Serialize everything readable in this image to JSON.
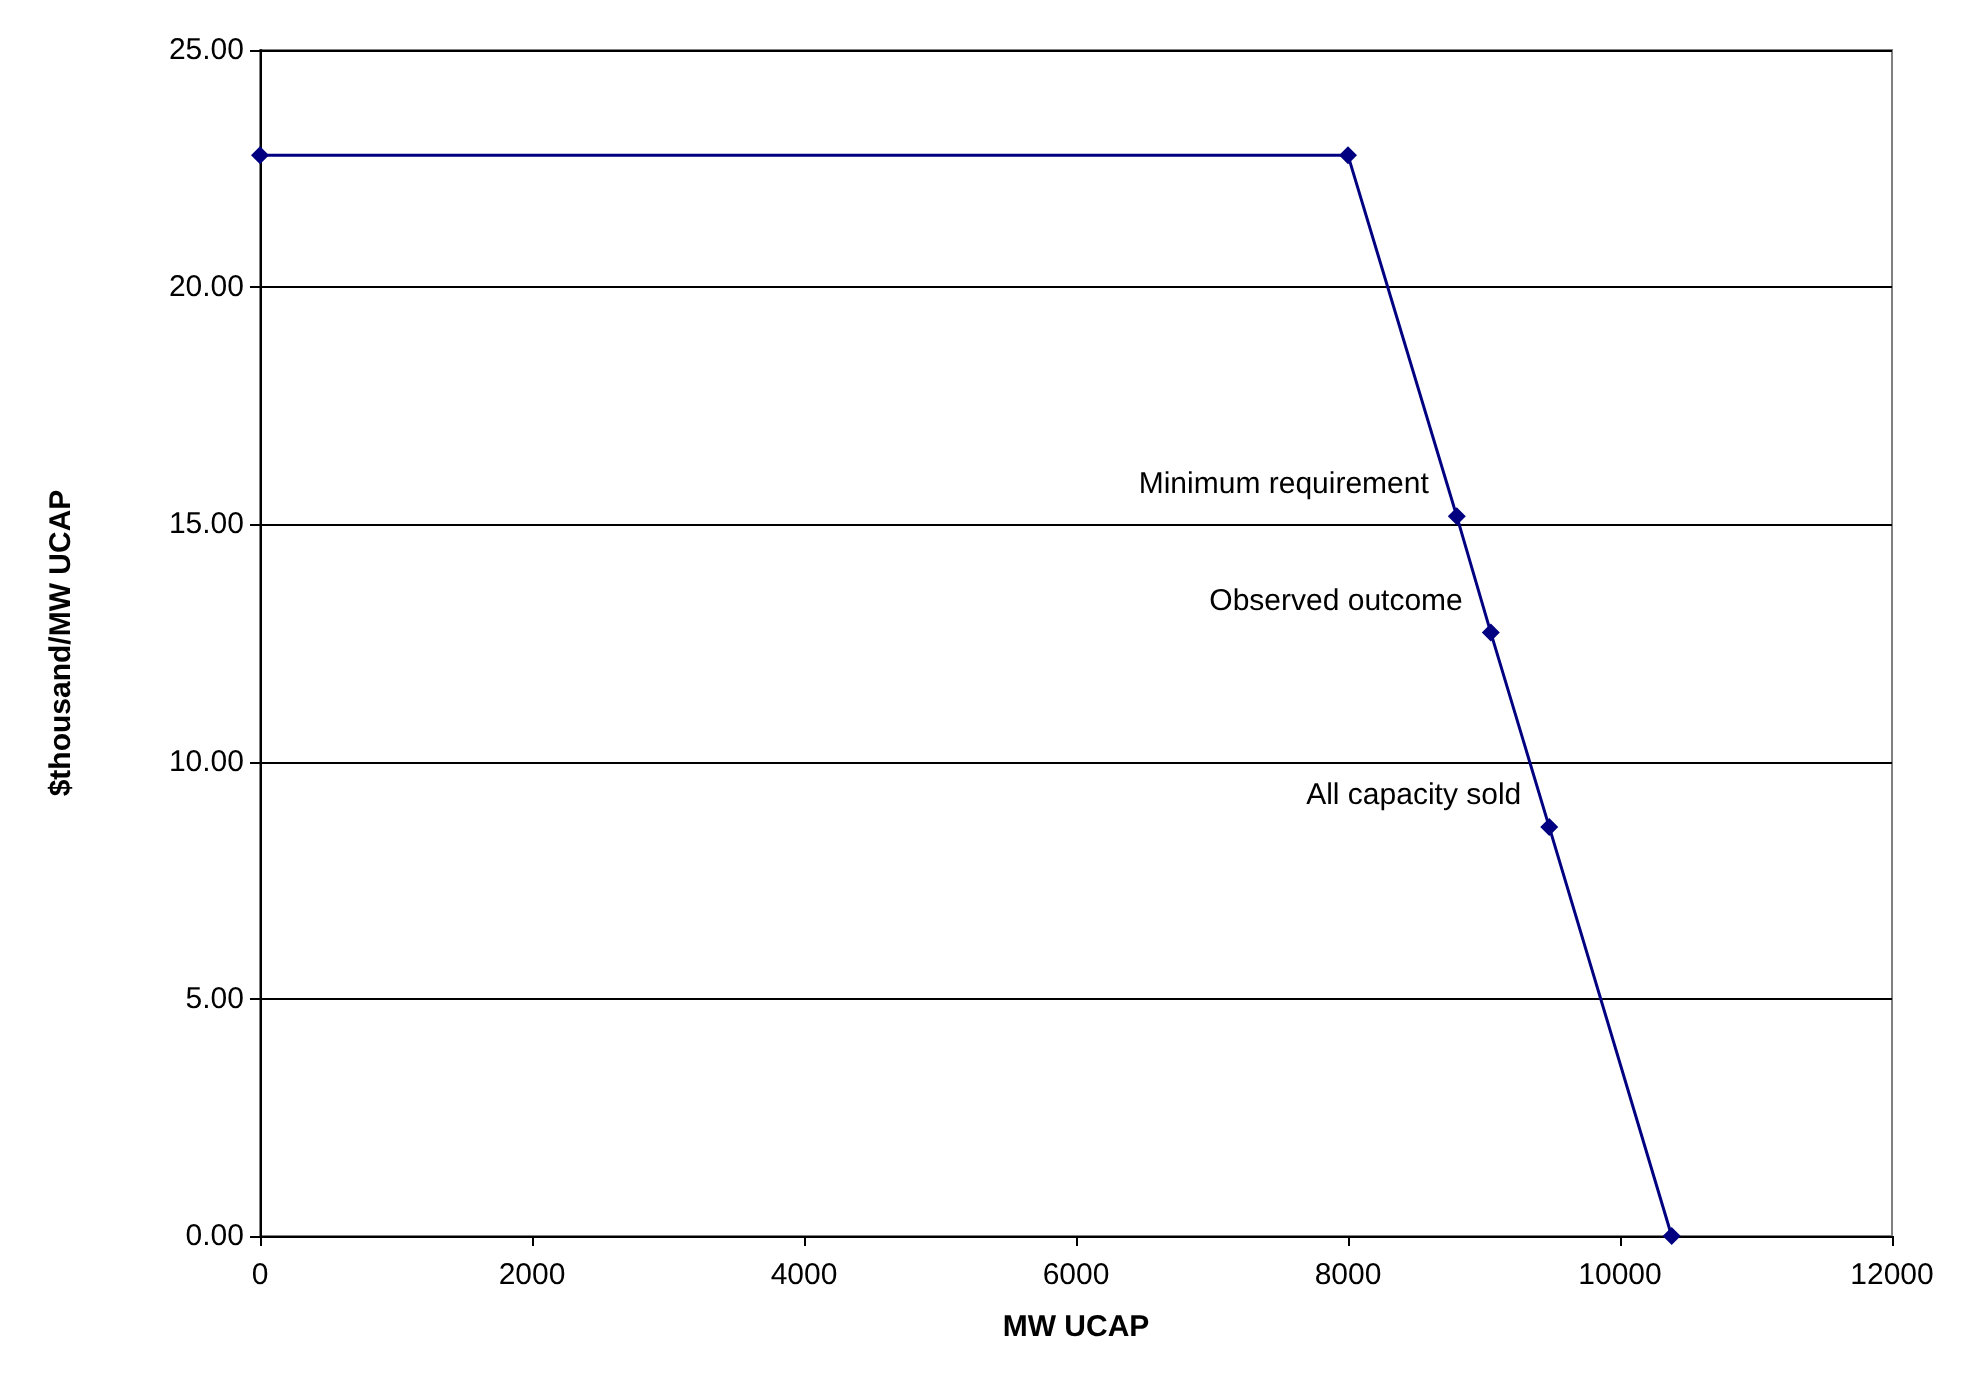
{
  "chart_data": {
    "type": "line",
    "xlabel": "MW UCAP",
    "ylabel": "$thousand/MW UCAP",
    "x": [
      0,
      8000,
      8800,
      9050,
      9480,
      10380
    ],
    "series": [
      {
        "color": "#000080",
        "values": [
          22.78,
          22.78,
          15.17,
          12.72,
          8.62,
          0
        ]
      }
    ],
    "xlim": [
      0,
      12000
    ],
    "xticks": [
      0,
      2000,
      4000,
      6000,
      8000,
      10000,
      12000
    ],
    "ylim": [
      0,
      25
    ],
    "yticks": [
      {
        "value": 0,
        "label": "0.00"
      },
      {
        "value": 5,
        "label": "5.00"
      },
      {
        "value": 10,
        "label": "10.00"
      },
      {
        "value": 15,
        "label": "15.00"
      },
      {
        "value": 20,
        "label": "20.00"
      },
      {
        "value": 25,
        "label": "25.00"
      }
    ],
    "grid": "y",
    "marker": "diamond",
    "line_style": "solid",
    "annotations": [
      {
        "text": "Minimum requirement",
        "x": 8800,
        "y": 15.17
      },
      {
        "text": "Observed outcome",
        "x": 9050,
        "y": 12.72
      },
      {
        "text": "All capacity sold",
        "x": 9480,
        "y": 8.62
      }
    ]
  }
}
